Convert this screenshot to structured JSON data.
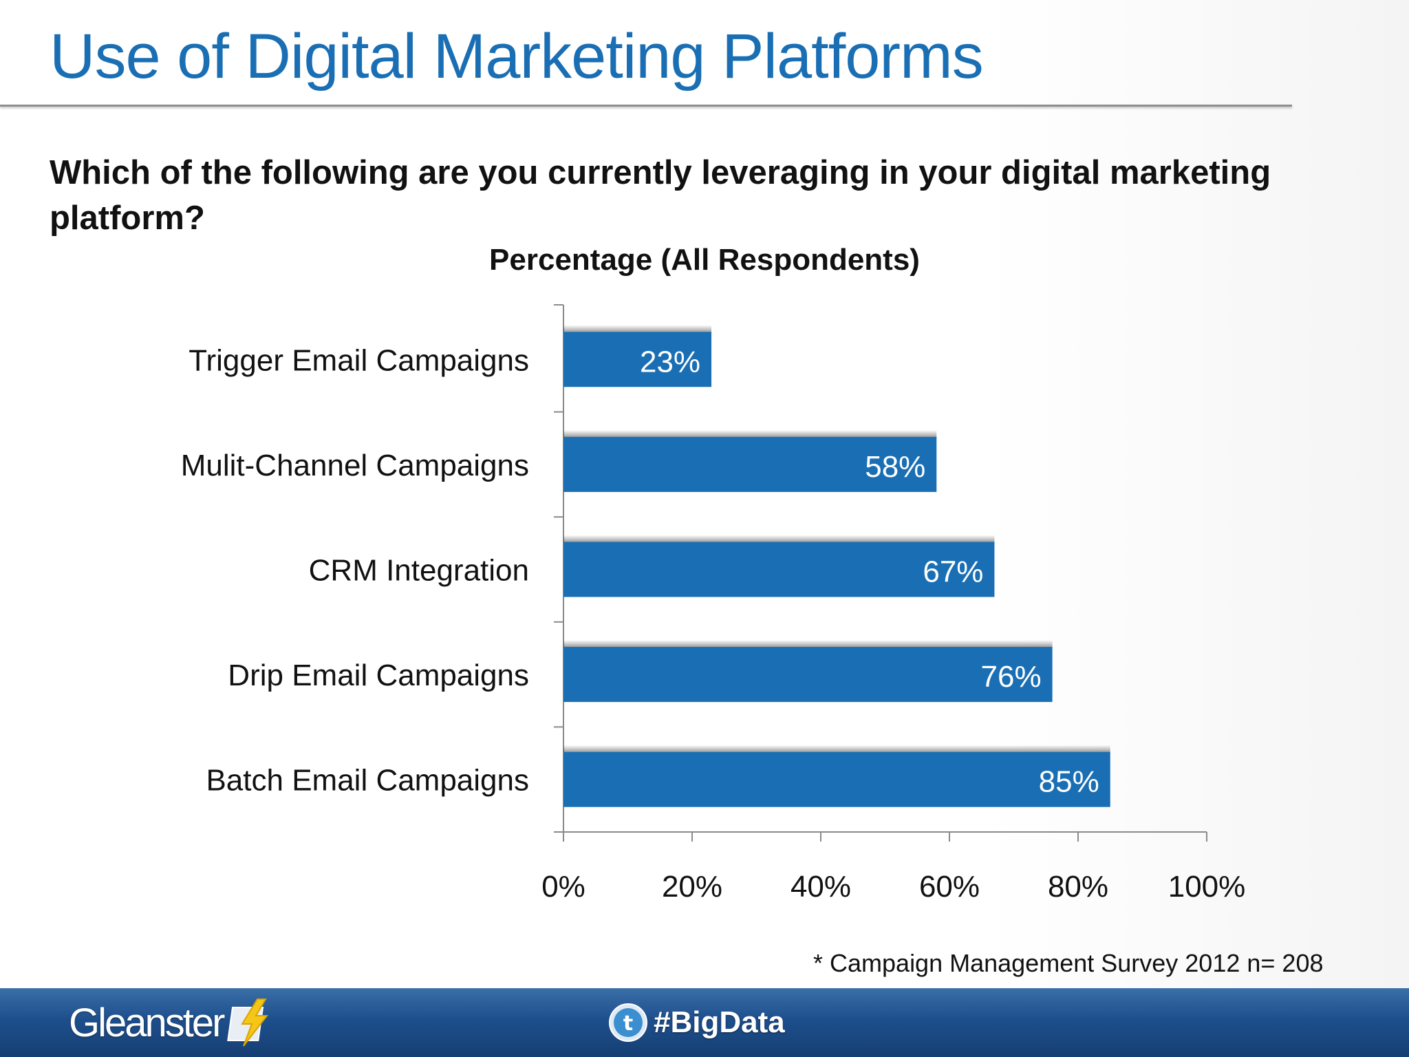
{
  "slide": {
    "title": "Use of Digital Marketing Platforms",
    "question": "Which of the following are you currently leveraging in your digital marketing platform?",
    "footnote": "* Campaign Management Survey 2012 n= 208",
    "brand": "Gleanster",
    "hashtag": "#BigData",
    "colors": {
      "title": "#1a6fb4",
      "bar": "#1a6fb4",
      "footer": "#1d4f8c"
    },
    "icons": {
      "brand_logo": "lightning-bolt-icon",
      "social": "twitter-icon"
    }
  },
  "chart_data": {
    "type": "bar",
    "orientation": "horizontal",
    "title": "Percentage (All Respondents)",
    "categories": [
      "Trigger Email Campaigns",
      "Mulit-Channel Campaigns",
      "CRM Integration",
      "Drip Email Campaigns",
      "Batch Email Campaigns"
    ],
    "values": [
      23,
      58,
      67,
      76,
      85
    ],
    "data_labels": [
      "23%",
      "58%",
      "67%",
      "76%",
      "85%"
    ],
    "xlim": [
      0,
      100
    ],
    "x_ticks": [
      "0%",
      "20%",
      "40%",
      "60%",
      "80%",
      "100%"
    ],
    "xlabel": "",
    "ylabel": "",
    "grid": false,
    "legend": "none"
  }
}
